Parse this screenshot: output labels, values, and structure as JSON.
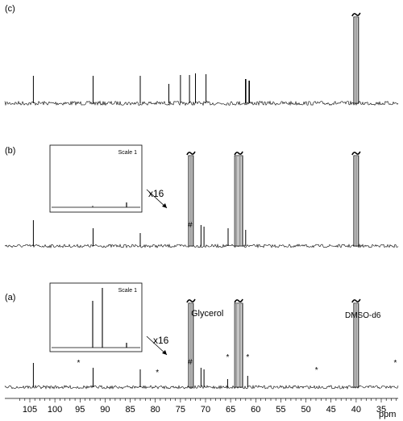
{
  "chart_data": {
    "type": "line",
    "xlabel": "ppm",
    "x_reversed": true,
    "xlim": [
      107,
      28
    ],
    "x_ticks": [
      105,
      100,
      95,
      90,
      85,
      80,
      75,
      70,
      65,
      60,
      55,
      50,
      45,
      40,
      35
    ],
    "panels": [
      {
        "label": "(c)",
        "peaks_ppm": [
          104.3,
          92.4,
          83.0,
          77.3,
          75.0,
          73.2,
          72.0,
          69.9,
          62.0,
          61.3,
          40.0
        ],
        "clipped_peak_ppm": 40.0
      },
      {
        "label": "(b)",
        "inset": {
          "label": "Scale 1"
        },
        "multiplier_label": "x16",
        "hash_label": "#",
        "peaks_ppm": [
          104.3,
          92.4,
          83.0,
          72.9,
          70.9,
          70.3,
          65.5,
          63.4,
          62.0,
          40.0
        ],
        "clipped_peaks_ppm": [
          72.9,
          63.4,
          40.0
        ]
      },
      {
        "label": "(a)",
        "inset": {
          "label": "Scale 1"
        },
        "multiplier_label": "x16",
        "hash_label": "#",
        "annotations": [
          "Glycerol",
          "DMSO-d6"
        ],
        "star_label": "*",
        "star_positions_ppm": [
          95.3,
          79.6,
          65.6,
          61.6,
          47.9,
          32.2
        ],
        "peaks_ppm": [
          104.3,
          92.4,
          83.0,
          72.9,
          70.9,
          70.3,
          65.6,
          63.4,
          61.6,
          40.0
        ],
        "clipped_peaks_ppm": [
          72.9,
          63.4,
          40.0
        ]
      }
    ]
  }
}
